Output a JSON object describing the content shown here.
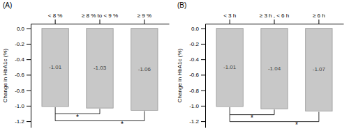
{
  "chart_data": [
    {
      "type": "bar",
      "title": "(A)",
      "categories": [
        "< 8 %",
        "≥ 8 % to < 9 %",
        "≥ 9 %"
      ],
      "values": [
        -1.01,
        -1.03,
        -1.06
      ],
      "color": "#c8c8c8",
      "ylabel": "Change in HbA1c (%)",
      "ylim": [
        -1.28,
        0.06
      ],
      "yticks": [
        {
          "value": 0.0,
          "label": "0.0"
        },
        -0.2,
        -0.4,
        -0.6,
        -0.8,
        {
          "value": -1.0,
          "label": "-1.0"
        },
        -1.2
      ],
      "data_labels": true,
      "grid": false,
      "annotations": [
        "*",
        "*"
      ]
    },
    {
      "type": "bar",
      "title": "(B)",
      "categories": [
        "< 3 h",
        "≥ 3 h , < 6 h",
        "≥ 6 h"
      ],
      "values": [
        -1.01,
        -1.04,
        -1.07
      ],
      "color": "#c8c8c8",
      "ylabel": "Change in HbA1c (%)",
      "ylim": [
        -1.28,
        0.06
      ],
      "yticks": [
        {
          "value": 0.0,
          "label": "0.0"
        },
        -0.2,
        -0.4,
        -0.6,
        -0.8,
        {
          "value": -1.0,
          "label": "-1.0"
        },
        -1.2
      ],
      "data_labels": true,
      "grid": false,
      "annotations": [
        "*",
        "*"
      ]
    }
  ]
}
